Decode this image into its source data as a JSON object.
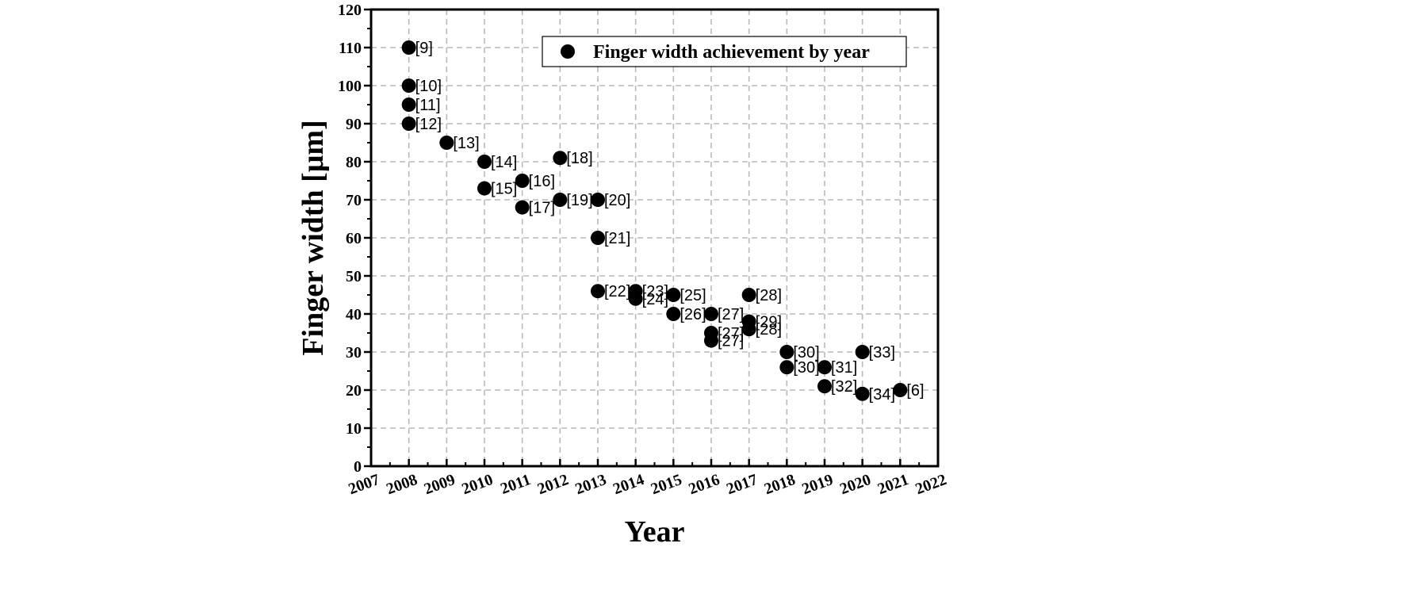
{
  "chart_data": {
    "type": "scatter",
    "xlabel": "Year",
    "ylabel": "Finger width [μm]",
    "xlim": [
      2007,
      2022
    ],
    "ylim": [
      0,
      120
    ],
    "x_ticks": [
      "2007",
      "2008",
      "2009",
      "2010",
      "2011",
      "2012",
      "2013",
      "2014",
      "2015",
      "2016",
      "2017",
      "2018",
      "2019",
      "2020",
      "2021",
      "2022"
    ],
    "y_ticks": [
      "0",
      "10",
      "20",
      "30",
      "40",
      "50",
      "60",
      "70",
      "80",
      "90",
      "100",
      "110",
      "120"
    ],
    "grid": true,
    "legend_position": "top-right",
    "marker_color": "#000000",
    "series": [
      {
        "name": "Finger width achievement by year",
        "points": [
          {
            "x": 2008,
            "y": 110,
            "label": "[9]"
          },
          {
            "x": 2008,
            "y": 100,
            "label": "[10]"
          },
          {
            "x": 2008,
            "y": 95,
            "label": "[11]"
          },
          {
            "x": 2008,
            "y": 90,
            "label": "[12]"
          },
          {
            "x": 2009,
            "y": 85,
            "label": "[13]"
          },
          {
            "x": 2010,
            "y": 80,
            "label": "[14]"
          },
          {
            "x": 2010,
            "y": 73,
            "label": "[15]"
          },
          {
            "x": 2011,
            "y": 75,
            "label": "[16]"
          },
          {
            "x": 2011,
            "y": 68,
            "label": "[17]"
          },
          {
            "x": 2012,
            "y": 81,
            "label": "[18]"
          },
          {
            "x": 2012,
            "y": 70,
            "label": "[19]"
          },
          {
            "x": 2013,
            "y": 70,
            "label": "[20]"
          },
          {
            "x": 2013,
            "y": 60,
            "label": "[21]"
          },
          {
            "x": 2013,
            "y": 46,
            "label": "[22]"
          },
          {
            "x": 2014,
            "y": 46,
            "label": "[23]"
          },
          {
            "x": 2014,
            "y": 44,
            "label": "[24]"
          },
          {
            "x": 2015,
            "y": 45,
            "label": "[25]"
          },
          {
            "x": 2015,
            "y": 40,
            "label": "[26]"
          },
          {
            "x": 2016,
            "y": 40,
            "label": "[27]"
          },
          {
            "x": 2016,
            "y": 35,
            "label": "[27]"
          },
          {
            "x": 2016,
            "y": 33,
            "label": "[27]"
          },
          {
            "x": 2017,
            "y": 45,
            "label": "[28]"
          },
          {
            "x": 2017,
            "y": 38,
            "label": "[29]"
          },
          {
            "x": 2017,
            "y": 36,
            "label": "[28]"
          },
          {
            "x": 2018,
            "y": 30,
            "label": "[30]"
          },
          {
            "x": 2018,
            "y": 26,
            "label": "[30]"
          },
          {
            "x": 2019,
            "y": 26,
            "label": "[31]"
          },
          {
            "x": 2019,
            "y": 21,
            "label": "[32]"
          },
          {
            "x": 2020,
            "y": 30,
            "label": "[33]"
          },
          {
            "x": 2020,
            "y": 19,
            "label": "[34]"
          },
          {
            "x": 2021,
            "y": 20,
            "label": "[6]"
          }
        ]
      }
    ]
  }
}
